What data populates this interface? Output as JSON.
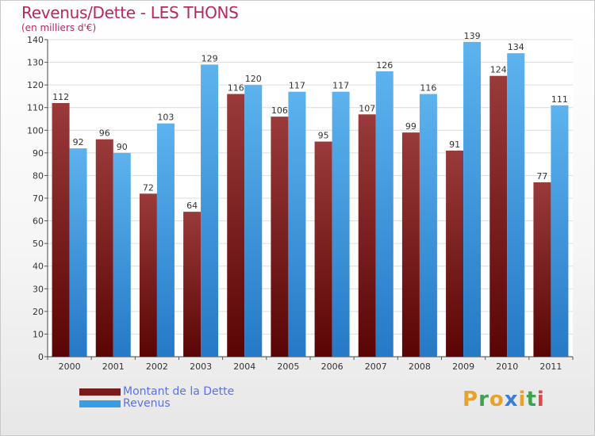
{
  "header": {
    "title": "Revenus/Dette - LES THONS",
    "subtitle": "(en milliers d'€)"
  },
  "chart_data": {
    "type": "bar",
    "title": "Revenus/Dette - LES THONS",
    "ylabel": "(en milliers d'€)",
    "xlabel": "",
    "categories": [
      "2000",
      "2001",
      "2002",
      "2003",
      "2004",
      "2005",
      "2006",
      "2007",
      "2008",
      "2009",
      "2010",
      "2011"
    ],
    "series": [
      {
        "name": "Montant de la Dette",
        "color": "#7a1a1a",
        "values": [
          112,
          96,
          72,
          64,
          116,
          106,
          95,
          107,
          99,
          91,
          124,
          77
        ]
      },
      {
        "name": "Revenus",
        "color": "#3a9ce2",
        "values": [
          92,
          90,
          103,
          129,
          120,
          117,
          117,
          126,
          116,
          139,
          134,
          111
        ]
      }
    ],
    "ylim": [
      0,
      140
    ],
    "yticks": [
      0,
      10,
      20,
      30,
      40,
      50,
      60,
      70,
      80,
      90,
      100,
      110,
      120,
      130,
      140
    ],
    "grid": true,
    "legend_position": "bottom-left"
  },
  "legend": {
    "items": [
      {
        "label": "Montant de la Dette",
        "color": "#7a1a1a"
      },
      {
        "label": "Revenus",
        "color": "#3a9ce2"
      }
    ]
  },
  "logo": {
    "text": "Proxiti",
    "letter_colors": [
      "#e8a12a",
      "#3fa34d",
      "#e8a12a",
      "#3a7fd6",
      "#e8a12a",
      "#3fa34d",
      "#d94b4b"
    ]
  }
}
